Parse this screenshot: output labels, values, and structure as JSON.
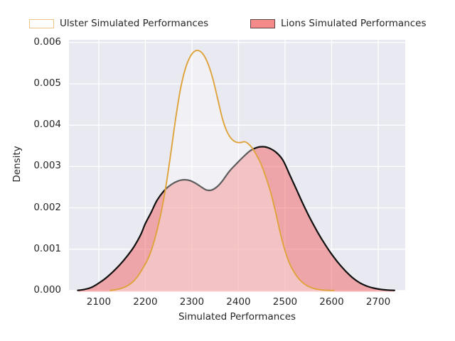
{
  "figure": {
    "background": "#ffffff"
  },
  "legend": {
    "position": "top",
    "entries": [
      {
        "label": "Ulster Simulated Performances",
        "swatch_fill": "#ffffff",
        "swatch_border": "#edc385"
      },
      {
        "label": "Lions Simulated Performances",
        "swatch_fill": "#f48a8a",
        "swatch_border": "#5f4444"
      }
    ]
  },
  "chart_data": {
    "type": "area",
    "subtype": "kde-density",
    "title": "",
    "xlabel": "Simulated Performances",
    "ylabel": "Density",
    "xlim": [
      2036,
      2758
    ],
    "ylim": [
      0,
      0.006065
    ],
    "grid": true,
    "legend_position": "top",
    "plot_background": "#e9e9f1",
    "grid_color": "#ffffff",
    "text_color": "#262626",
    "x_ticks": [
      {
        "value": 2100,
        "label": "2100"
      },
      {
        "value": 2200,
        "label": "2200"
      },
      {
        "value": 2300,
        "label": "2300"
      },
      {
        "value": 2400,
        "label": "2400"
      },
      {
        "value": 2500,
        "label": "2500"
      },
      {
        "value": 2600,
        "label": "2600"
      },
      {
        "value": 2700,
        "label": "2700"
      }
    ],
    "y_ticks": [
      {
        "value": 0.0,
        "label": "0.000"
      },
      {
        "value": 0.001,
        "label": "0.001"
      },
      {
        "value": 0.002,
        "label": "0.002"
      },
      {
        "value": 0.003,
        "label": "0.003"
      },
      {
        "value": 0.004,
        "label": "0.004"
      },
      {
        "value": 0.005,
        "label": "0.005"
      },
      {
        "value": 0.006,
        "label": "0.006"
      }
    ],
    "series": [
      {
        "name": "Lions Simulated Performances",
        "line_color": "#111111",
        "line_width": 2.2,
        "fill_color": "rgba(240,110,110,0.55)",
        "peaks": [
          {
            "x": 2283,
            "density": 0.00268
          },
          {
            "x": 2452,
            "density": 0.00348
          }
        ],
        "points": [
          [
            2055,
            5e-06
          ],
          [
            2070,
            3e-05
          ],
          [
            2085,
            8e-05
          ],
          [
            2100,
            0.00018
          ],
          [
            2115,
            0.0003
          ],
          [
            2130,
            0.00045
          ],
          [
            2145,
            0.00062
          ],
          [
            2160,
            0.00082
          ],
          [
            2175,
            0.00105
          ],
          [
            2190,
            0.00135
          ],
          [
            2200,
            0.00162
          ],
          [
            2212,
            0.00188
          ],
          [
            2225,
            0.00218
          ],
          [
            2240,
            0.00241
          ],
          [
            2255,
            0.00256
          ],
          [
            2270,
            0.00265
          ],
          [
            2283,
            0.00268
          ],
          [
            2296,
            0.00266
          ],
          [
            2310,
            0.00258
          ],
          [
            2322,
            0.00249
          ],
          [
            2332,
            0.00243
          ],
          [
            2342,
            0.00243
          ],
          [
            2354,
            0.00251
          ],
          [
            2366,
            0.00266
          ],
          [
            2380,
            0.00288
          ],
          [
            2395,
            0.00306
          ],
          [
            2410,
            0.00323
          ],
          [
            2425,
            0.00338
          ],
          [
            2440,
            0.00346
          ],
          [
            2452,
            0.00348
          ],
          [
            2465,
            0.00345
          ],
          [
            2480,
            0.00335
          ],
          [
            2495,
            0.00316
          ],
          [
            2510,
            0.0028
          ],
          [
            2525,
            0.00243
          ],
          [
            2540,
            0.00206
          ],
          [
            2555,
            0.00172
          ],
          [
            2570,
            0.00141
          ],
          [
            2585,
            0.00113
          ],
          [
            2600,
            0.00088
          ],
          [
            2615,
            0.00066
          ],
          [
            2630,
            0.00047
          ],
          [
            2645,
            0.00031
          ],
          [
            2660,
            0.00019
          ],
          [
            2675,
            0.00011
          ],
          [
            2690,
            6e-05
          ],
          [
            2705,
            3e-05
          ],
          [
            2720,
            1.2e-05
          ],
          [
            2735,
            5e-06
          ]
        ]
      },
      {
        "name": "Ulster Simulated Performances",
        "line_color": "#dfa33b",
        "line_width": 1.9,
        "fill_color": "rgba(255,255,255,0.32)",
        "peaks": [
          {
            "x": 2315,
            "density": 0.0058
          },
          {
            "x": 2413,
            "density": 0.0036
          }
        ],
        "points": [
          [
            2125,
            5e-06
          ],
          [
            2140,
            3e-05
          ],
          [
            2155,
            8e-05
          ],
          [
            2170,
            0.00018
          ],
          [
            2182,
            0.00032
          ],
          [
            2195,
            0.00055
          ],
          [
            2205,
            0.00075
          ],
          [
            2215,
            0.00105
          ],
          [
            2225,
            0.00145
          ],
          [
            2235,
            0.00195
          ],
          [
            2245,
            0.00258
          ],
          [
            2255,
            0.00335
          ],
          [
            2265,
            0.00415
          ],
          [
            2275,
            0.00485
          ],
          [
            2285,
            0.00533
          ],
          [
            2295,
            0.00563
          ],
          [
            2305,
            0.00578
          ],
          [
            2315,
            0.0058
          ],
          [
            2325,
            0.0057
          ],
          [
            2335,
            0.00547
          ],
          [
            2345,
            0.00512
          ],
          [
            2355,
            0.00465
          ],
          [
            2365,
            0.00418
          ],
          [
            2375,
            0.00385
          ],
          [
            2385,
            0.00367
          ],
          [
            2395,
            0.00359
          ],
          [
            2405,
            0.00358
          ],
          [
            2413,
            0.0036
          ],
          [
            2421,
            0.00355
          ],
          [
            2430,
            0.00344
          ],
          [
            2440,
            0.00325
          ],
          [
            2450,
            0.00302
          ],
          [
            2460,
            0.0027
          ],
          [
            2470,
            0.00234
          ],
          [
            2480,
            0.00188
          ],
          [
            2490,
            0.00138
          ],
          [
            2500,
            0.00096
          ],
          [
            2510,
            0.00065
          ],
          [
            2522,
            0.0004
          ],
          [
            2535,
            0.00022
          ],
          [
            2550,
            0.0001
          ],
          [
            2565,
            4e-05
          ],
          [
            2585,
            1e-05
          ],
          [
            2605,
            3e-06
          ]
        ]
      }
    ]
  }
}
